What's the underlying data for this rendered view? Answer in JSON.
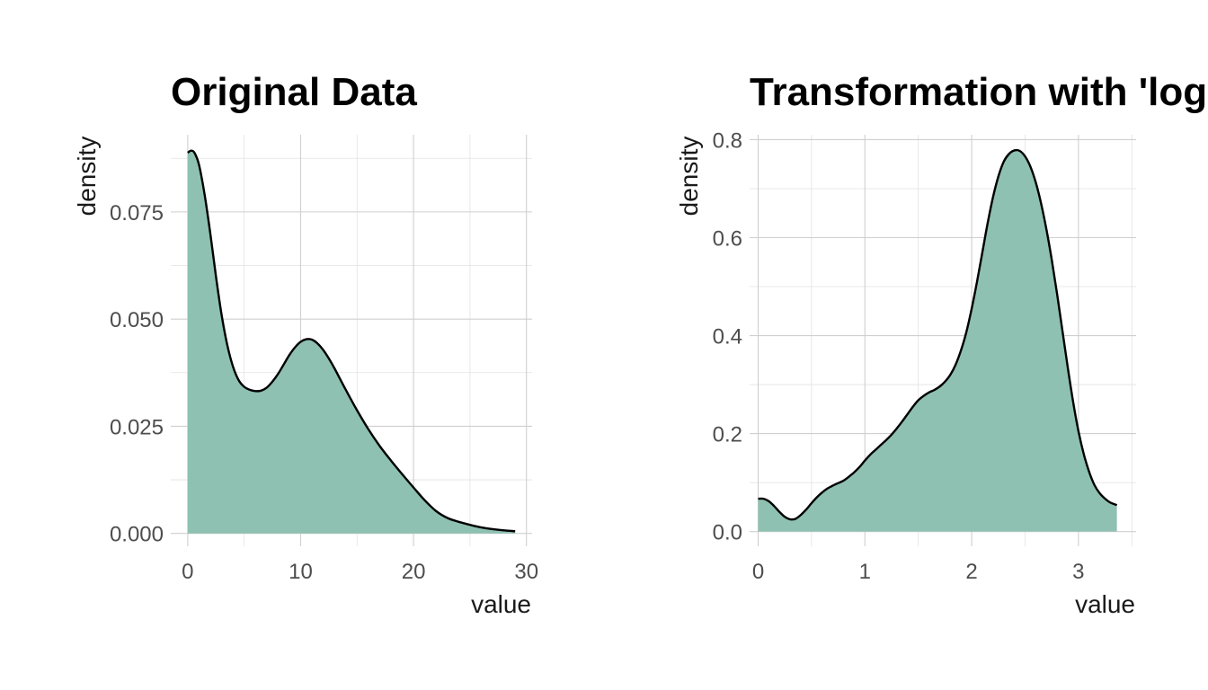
{
  "colors": {
    "fill": "#8ec1b2",
    "line": "#000000",
    "grid_major": "#cfcfcf",
    "grid_minor": "#e2e2e2",
    "background": "#ffffff"
  },
  "chart_data": [
    {
      "type": "area",
      "title": "Original Data",
      "xlabel": "value",
      "ylabel": "density",
      "xlim": [
        -1.5,
        30.5
      ],
      "ylim": [
        -0.003,
        0.093
      ],
      "xticks": [
        0,
        10,
        20,
        30
      ],
      "xtick_labels": [
        "0",
        "10",
        "20",
        "30"
      ],
      "yticks": [
        0,
        0.025,
        0.05,
        0.075
      ],
      "ytick_labels": [
        "0.000",
        "0.025",
        "0.050",
        "0.075"
      ],
      "grid": true,
      "x": [
        0,
        0.3,
        0.6,
        1,
        1.5,
        2,
        2.5,
        3,
        3.5,
        4,
        4.5,
        5,
        5.5,
        6,
        6.5,
        7,
        7.5,
        8,
        8.5,
        9,
        9.5,
        10,
        10.5,
        11,
        11.5,
        12,
        12.5,
        13,
        13.5,
        14,
        15,
        16,
        17,
        18,
        19,
        20,
        21,
        22,
        23,
        24,
        25,
        26,
        27,
        28,
        29
      ],
      "y": [
        0.0888,
        0.0893,
        0.0888,
        0.086,
        0.079,
        0.07,
        0.06,
        0.051,
        0.044,
        0.039,
        0.0358,
        0.0342,
        0.0335,
        0.0332,
        0.0333,
        0.034,
        0.0354,
        0.0372,
        0.0394,
        0.0416,
        0.0434,
        0.0447,
        0.0453,
        0.0452,
        0.0443,
        0.0428,
        0.0408,
        0.0385,
        0.036,
        0.0335,
        0.0287,
        0.0243,
        0.0204,
        0.017,
        0.0138,
        0.0107,
        0.0077,
        0.0052,
        0.0036,
        0.0027,
        0.002,
        0.0014,
        0.001,
        0.0007,
        0.0005
      ]
    },
    {
      "type": "area",
      "title": "Transformation with 'log'",
      "xlabel": "value",
      "ylabel": "density",
      "xlim": [
        -0.08,
        3.54
      ],
      "ylim": [
        -0.03,
        0.81
      ],
      "xticks": [
        0,
        1,
        2,
        3
      ],
      "xtick_labels": [
        "0",
        "1",
        "2",
        "3"
      ],
      "yticks": [
        0,
        0.2,
        0.4,
        0.6,
        0.8
      ],
      "ytick_labels": [
        "0.0",
        "0.2",
        "0.4",
        "0.6",
        "0.8"
      ],
      "grid": true,
      "x": [
        0,
        0.05,
        0.1,
        0.15,
        0.2,
        0.25,
        0.3,
        0.35,
        0.4,
        0.45,
        0.5,
        0.55,
        0.6,
        0.65,
        0.7,
        0.75,
        0.8,
        0.85,
        0.9,
        0.95,
        1,
        1.05,
        1.1,
        1.15,
        1.2,
        1.25,
        1.3,
        1.35,
        1.4,
        1.45,
        1.5,
        1.55,
        1.6,
        1.65,
        1.7,
        1.75,
        1.8,
        1.85,
        1.9,
        1.95,
        2,
        2.05,
        2.1,
        2.15,
        2.2,
        2.25,
        2.3,
        2.35,
        2.4,
        2.45,
        2.5,
        2.55,
        2.6,
        2.65,
        2.7,
        2.75,
        2.8,
        2.85,
        2.9,
        2.95,
        3,
        3.05,
        3.1,
        3.15,
        3.2,
        3.25,
        3.3,
        3.36
      ],
      "y": [
        0.067,
        0.067,
        0.062,
        0.052,
        0.04,
        0.03,
        0.025,
        0.026,
        0.034,
        0.045,
        0.058,
        0.07,
        0.08,
        0.088,
        0.094,
        0.099,
        0.104,
        0.112,
        0.121,
        0.132,
        0.145,
        0.157,
        0.167,
        0.177,
        0.187,
        0.198,
        0.211,
        0.225,
        0.24,
        0.255,
        0.268,
        0.277,
        0.284,
        0.289,
        0.296,
        0.306,
        0.32,
        0.341,
        0.37,
        0.407,
        0.455,
        0.51,
        0.57,
        0.63,
        0.683,
        0.725,
        0.755,
        0.771,
        0.778,
        0.777,
        0.766,
        0.745,
        0.713,
        0.67,
        0.617,
        0.555,
        0.485,
        0.41,
        0.335,
        0.265,
        0.205,
        0.158,
        0.122,
        0.095,
        0.078,
        0.067,
        0.059,
        0.054
      ]
    }
  ]
}
